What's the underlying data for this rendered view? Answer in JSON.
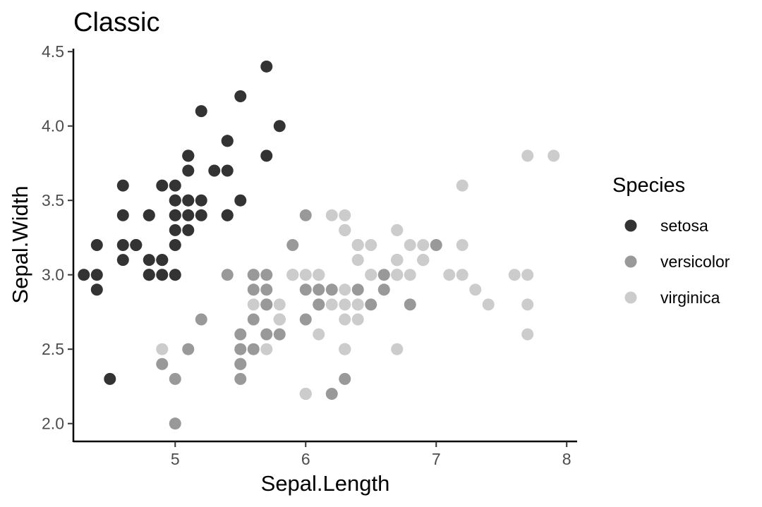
{
  "chart_data": {
    "type": "scatter",
    "title": "Classic",
    "xlabel": "Sepal.Length",
    "ylabel": "Sepal.Width",
    "xlim": [
      4.22,
      8.08
    ],
    "ylim": [
      1.88,
      4.52
    ],
    "xticks": [
      5,
      6,
      7,
      8
    ],
    "yticks": [
      2.0,
      2.5,
      3.0,
      3.5,
      4.0,
      4.5
    ],
    "xtick_labels": [
      "5",
      "6",
      "7",
      "8"
    ],
    "ytick_labels": [
      "2.0",
      "2.5",
      "3.0",
      "3.5",
      "4.0",
      "4.5"
    ],
    "grid": false,
    "legend": {
      "title": "Species",
      "position": "right"
    },
    "series": [
      {
        "name": "setosa",
        "color": "#333333",
        "points": [
          [
            5.1,
            3.5
          ],
          [
            4.9,
            3.0
          ],
          [
            4.7,
            3.2
          ],
          [
            4.6,
            3.1
          ],
          [
            5.0,
            3.6
          ],
          [
            5.4,
            3.9
          ],
          [
            4.6,
            3.4
          ],
          [
            5.0,
            3.4
          ],
          [
            4.4,
            2.9
          ],
          [
            4.9,
            3.1
          ],
          [
            5.4,
            3.7
          ],
          [
            4.8,
            3.4
          ],
          [
            4.8,
            3.0
          ],
          [
            4.3,
            3.0
          ],
          [
            5.8,
            4.0
          ],
          [
            5.7,
            4.4
          ],
          [
            5.4,
            3.9
          ],
          [
            5.1,
            3.5
          ],
          [
            5.7,
            3.8
          ],
          [
            5.1,
            3.8
          ],
          [
            5.4,
            3.4
          ],
          [
            5.1,
            3.7
          ],
          [
            4.6,
            3.6
          ],
          [
            5.1,
            3.3
          ],
          [
            4.8,
            3.4
          ],
          [
            5.0,
            3.0
          ],
          [
            5.0,
            3.4
          ],
          [
            5.2,
            3.5
          ],
          [
            5.2,
            3.4
          ],
          [
            4.7,
            3.2
          ],
          [
            4.8,
            3.1
          ],
          [
            5.4,
            3.4
          ],
          [
            5.2,
            4.1
          ],
          [
            5.5,
            4.2
          ],
          [
            4.9,
            3.1
          ],
          [
            5.0,
            3.2
          ],
          [
            5.5,
            3.5
          ],
          [
            4.9,
            3.6
          ],
          [
            4.4,
            3.0
          ],
          [
            5.1,
            3.4
          ],
          [
            5.0,
            3.5
          ],
          [
            4.5,
            2.3
          ],
          [
            4.4,
            3.2
          ],
          [
            5.0,
            3.5
          ],
          [
            5.1,
            3.8
          ],
          [
            4.8,
            3.0
          ],
          [
            5.1,
            3.8
          ],
          [
            4.6,
            3.2
          ],
          [
            5.3,
            3.7
          ],
          [
            5.0,
            3.3
          ]
        ]
      },
      {
        "name": "versicolor",
        "color": "#999999",
        "points": [
          [
            7.0,
            3.2
          ],
          [
            6.4,
            3.2
          ],
          [
            6.9,
            3.1
          ],
          [
            5.5,
            2.3
          ],
          [
            6.5,
            2.8
          ],
          [
            5.7,
            2.8
          ],
          [
            6.3,
            3.3
          ],
          [
            4.9,
            2.4
          ],
          [
            6.6,
            2.9
          ],
          [
            5.2,
            2.7
          ],
          [
            5.0,
            2.0
          ],
          [
            5.9,
            3.0
          ],
          [
            6.0,
            2.2
          ],
          [
            6.1,
            2.9
          ],
          [
            5.6,
            2.9
          ],
          [
            6.7,
            3.1
          ],
          [
            5.6,
            3.0
          ],
          [
            5.8,
            2.7
          ],
          [
            6.2,
            2.2
          ],
          [
            5.6,
            2.5
          ],
          [
            5.9,
            3.2
          ],
          [
            6.1,
            2.8
          ],
          [
            6.3,
            2.5
          ],
          [
            6.1,
            2.8
          ],
          [
            6.4,
            2.9
          ],
          [
            6.6,
            3.0
          ],
          [
            6.8,
            2.8
          ],
          [
            6.7,
            3.0
          ],
          [
            6.0,
            2.9
          ],
          [
            5.7,
            2.6
          ],
          [
            5.5,
            2.4
          ],
          [
            5.5,
            2.4
          ],
          [
            5.8,
            2.7
          ],
          [
            6.0,
            2.7
          ],
          [
            5.4,
            3.0
          ],
          [
            6.0,
            3.4
          ],
          [
            6.7,
            3.1
          ],
          [
            6.3,
            2.3
          ],
          [
            5.6,
            3.0
          ],
          [
            5.5,
            2.5
          ],
          [
            5.5,
            2.6
          ],
          [
            6.1,
            3.0
          ],
          [
            5.8,
            2.6
          ],
          [
            5.0,
            2.3
          ],
          [
            5.6,
            2.7
          ],
          [
            5.7,
            3.0
          ],
          [
            5.7,
            2.9
          ],
          [
            6.2,
            2.9
          ],
          [
            5.1,
            2.5
          ],
          [
            5.7,
            2.8
          ]
        ]
      },
      {
        "name": "virginica",
        "color": "#cccccc",
        "points": [
          [
            6.3,
            3.3
          ],
          [
            5.8,
            2.7
          ],
          [
            7.1,
            3.0
          ],
          [
            6.3,
            2.9
          ],
          [
            6.5,
            3.0
          ],
          [
            7.6,
            3.0
          ],
          [
            4.9,
            2.5
          ],
          [
            7.3,
            2.9
          ],
          [
            6.7,
            2.5
          ],
          [
            7.2,
            3.6
          ],
          [
            6.5,
            3.2
          ],
          [
            6.4,
            2.7
          ],
          [
            6.8,
            3.0
          ],
          [
            5.7,
            2.5
          ],
          [
            5.8,
            2.8
          ],
          [
            6.4,
            3.2
          ],
          [
            6.5,
            3.0
          ],
          [
            7.7,
            3.8
          ],
          [
            7.7,
            2.6
          ],
          [
            6.0,
            2.2
          ],
          [
            6.9,
            3.2
          ],
          [
            5.6,
            2.8
          ],
          [
            7.7,
            2.8
          ],
          [
            6.3,
            2.7
          ],
          [
            6.7,
            3.3
          ],
          [
            7.2,
            3.2
          ],
          [
            6.2,
            2.8
          ],
          [
            6.1,
            3.0
          ],
          [
            6.4,
            2.8
          ],
          [
            7.2,
            3.0
          ],
          [
            7.4,
            2.8
          ],
          [
            7.9,
            3.8
          ],
          [
            6.4,
            2.8
          ],
          [
            6.3,
            2.8
          ],
          [
            6.1,
            2.6
          ],
          [
            7.7,
            3.0
          ],
          [
            6.3,
            3.4
          ],
          [
            6.4,
            3.1
          ],
          [
            6.0,
            3.0
          ],
          [
            6.9,
            3.1
          ],
          [
            6.7,
            3.1
          ],
          [
            6.9,
            3.1
          ],
          [
            5.8,
            2.7
          ],
          [
            6.8,
            3.2
          ],
          [
            6.7,
            3.3
          ],
          [
            6.7,
            3.0
          ],
          [
            6.3,
            2.5
          ],
          [
            6.5,
            3.0
          ],
          [
            6.2,
            3.4
          ],
          [
            5.9,
            3.0
          ]
        ]
      }
    ]
  }
}
